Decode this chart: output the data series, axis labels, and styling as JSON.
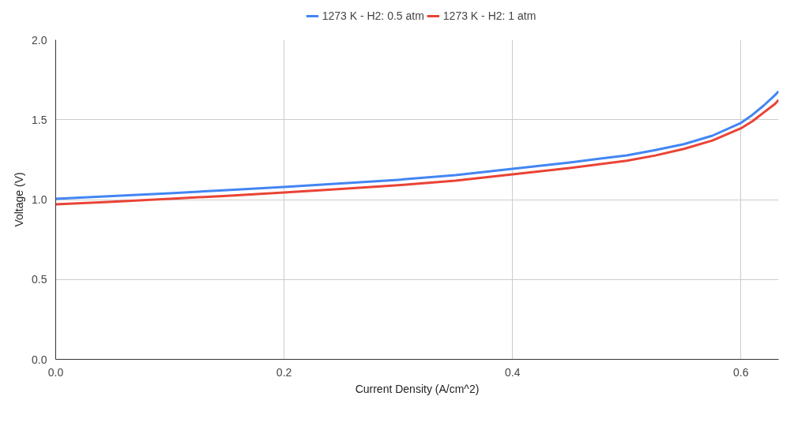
{
  "chart_data": {
    "type": "line",
    "xlabel": "Current Density (A/cm^2)",
    "ylabel": "Voltage (V)",
    "x": [
      0,
      0.05,
      0.1,
      0.15,
      0.2,
      0.25,
      0.3,
      0.35,
      0.4,
      0.45,
      0.5,
      0.525,
      0.55,
      0.575,
      0.6,
      0.61,
      0.62,
      0.63,
      0.633
    ],
    "series": [
      {
        "name": "1273 K - H2: 0.5 atm",
        "color": "#4285f4",
        "values": [
          1.005,
          1.022,
          1.04,
          1.059,
          1.079,
          1.101,
          1.124,
          1.153,
          1.193,
          1.232,
          1.277,
          1.31,
          1.347,
          1.4,
          1.48,
          1.53,
          1.589,
          1.655,
          1.678
        ]
      },
      {
        "name": "1273 K - H2: 1 atm",
        "color": "#ea4335",
        "values": [
          0.97,
          0.987,
          1.005,
          1.024,
          1.045,
          1.067,
          1.09,
          1.119,
          1.158,
          1.197,
          1.243,
          1.276,
          1.317,
          1.37,
          1.446,
          1.49,
          1.545,
          1.6,
          1.624
        ]
      }
    ],
    "xlim": [
      0,
      0.633
    ],
    "ylim": [
      0,
      2
    ],
    "xticks": [
      {
        "value": 0,
        "label": "0.0"
      },
      {
        "value": 0.2,
        "label": "0.2"
      },
      {
        "value": 0.4,
        "label": "0.4"
      },
      {
        "value": 0.6,
        "label": "0.6"
      }
    ],
    "yticks": [
      {
        "value": 0,
        "label": "0.0"
      },
      {
        "value": 0.5,
        "label": "0.5"
      },
      {
        "value": 1,
        "label": "1.0"
      },
      {
        "value": 1.5,
        "label": "1.5"
      },
      {
        "value": 2,
        "label": "2.0"
      }
    ],
    "grid": true,
    "legend": "top",
    "marker": "none",
    "line_style": "solid"
  }
}
